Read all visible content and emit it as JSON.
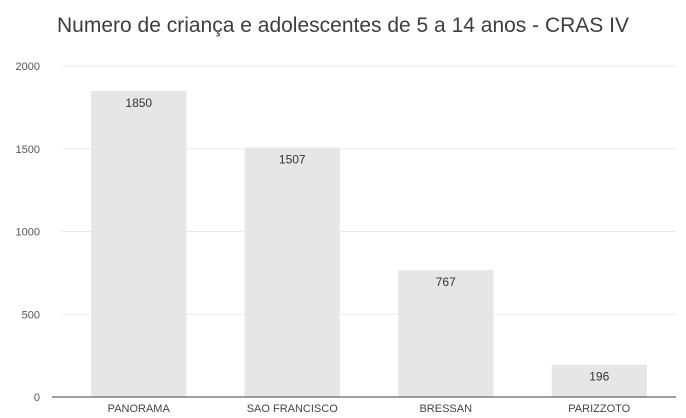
{
  "chart_data": {
    "type": "bar",
    "title": "Numero de criança e adolescentes de 5 a 14 anos - CRAS IV",
    "xlabel": "",
    "ylabel": "",
    "categories": [
      "PANORAMA",
      "SAO FRANCISCO",
      "BRESSAN",
      "PARIZZOTO"
    ],
    "values": [
      1850,
      1507,
      767,
      196
    ],
    "data_labels": [
      "1850",
      "1507",
      "767",
      "196"
    ],
    "ylim": [
      0,
      2000
    ],
    "yticks": [
      0,
      500,
      1000,
      1500,
      2000
    ],
    "ytick_labels": [
      "0",
      "500",
      "1000",
      "1500",
      "2000"
    ],
    "grid": true,
    "legend": "none",
    "colors": {
      "bar": "#e6e6e6",
      "grid": "#e8e8e8",
      "axis": "#666666"
    }
  }
}
